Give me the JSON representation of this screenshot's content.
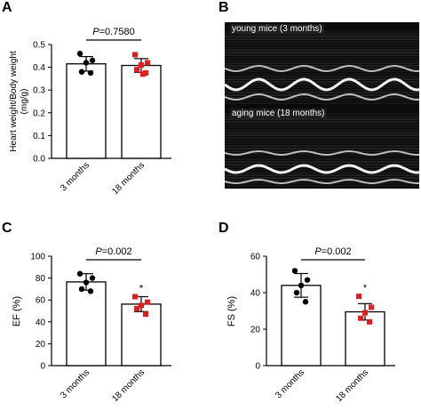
{
  "panels": {
    "a": "A",
    "b": "B",
    "c": "C",
    "d": "D"
  },
  "echo": {
    "top_label": "young mice (3 months)",
    "bottom_label": "aging mice (18 months)"
  },
  "colors": {
    "young_marker": "#000000",
    "old_marker": "#e41a1c",
    "bar_fill": "#ffffff",
    "bar_stroke": "#000000"
  },
  "chart_data": [
    {
      "id": "a",
      "type": "bar",
      "categories": [
        "3 months",
        "18 months"
      ],
      "values": [
        0.415,
        0.408
      ],
      "errors": [
        0.032,
        0.03
      ],
      "points": [
        [
          0.46,
          0.43,
          0.42,
          0.38,
          0.375
        ],
        [
          0.455,
          0.42,
          0.41,
          0.39,
          0.375,
          0.37
        ]
      ],
      "ylabel_lines": [
        "Heart weight/Body weight",
        "(mg/g)"
      ],
      "ylim": [
        0,
        0.5
      ],
      "yticks": [
        "0.0",
        "0.1",
        "0.2",
        "0.3",
        "0.4",
        "0.5"
      ],
      "p_label": "=0.7580",
      "p_symbol": "P",
      "significance": ""
    },
    {
      "id": "c",
      "type": "bar",
      "categories": [
        "3 months",
        "18 months"
      ],
      "values": [
        76.5,
        56.2
      ],
      "errors": [
        7.5,
        6.8
      ],
      "points": [
        [
          84,
          80,
          76,
          70,
          68
        ],
        [
          63,
          58,
          55,
          52,
          47
        ]
      ],
      "ylabel": "EF (%)",
      "ylim": [
        0,
        100
      ],
      "yticks": [
        "0",
        "20",
        "40",
        "60",
        "80",
        "100"
      ],
      "p_label": "=0.002",
      "p_symbol": "P",
      "significance": "*"
    },
    {
      "id": "d",
      "type": "bar",
      "categories": [
        "3 months",
        "18 months"
      ],
      "values": [
        44.0,
        29.5
      ],
      "errors": [
        6.5,
        4.5
      ],
      "points": [
        [
          52,
          47,
          44,
          40,
          35
        ],
        [
          38,
          32,
          29,
          26,
          24
        ]
      ],
      "ylabel": "FS (%)",
      "ylim": [
        0,
        60
      ],
      "yticks": [
        "0",
        "20",
        "40",
        "60"
      ],
      "p_label": "=0.002",
      "p_symbol": "P",
      "significance": "*"
    }
  ]
}
